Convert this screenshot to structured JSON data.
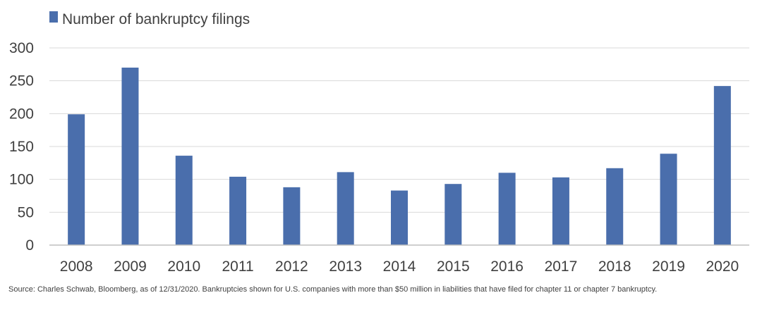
{
  "chart_data": {
    "type": "bar",
    "categories": [
      "2008",
      "2009",
      "2010",
      "2011",
      "2012",
      "2013",
      "2014",
      "2015",
      "2016",
      "2017",
      "2018",
      "2019",
      "2020"
    ],
    "series": [
      {
        "name": "Number of bankruptcy filings",
        "values": [
          199,
          270,
          136,
          104,
          88,
          111,
          83,
          93,
          110,
          103,
          117,
          139,
          242
        ]
      }
    ],
    "ylim": [
      0,
      300
    ],
    "yticks": [
      0,
      50,
      100,
      150,
      200,
      250,
      300
    ],
    "grid": true,
    "legend_position": "top-left",
    "colors": {
      "bar": "#4a6eac",
      "grid": "#d9d9d9",
      "axis": "#bfbfbf",
      "text": "#404040"
    }
  },
  "source_note": "Source: Charles Schwab, Bloomberg, as of 12/31/2020. Bankruptcies shown for U.S. companies with more than $50 million in liabilities that have filed for chapter 11 or chapter 7 bankruptcy."
}
